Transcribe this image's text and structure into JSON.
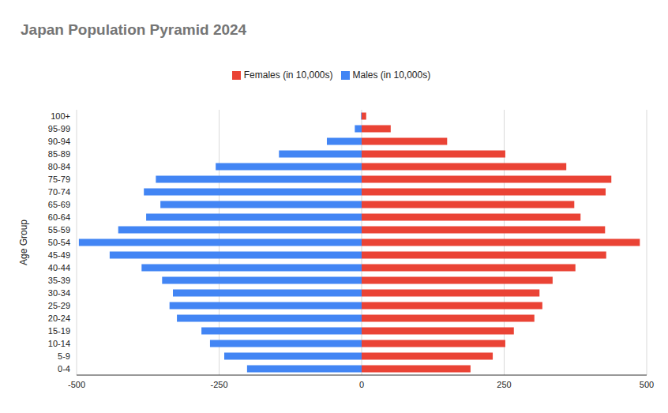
{
  "chart_data": {
    "type": "bar",
    "title": "Japan Population Pyramid 2024",
    "y_label": "Age Group",
    "orientation": "horizontal",
    "stacked": true,
    "grid": true,
    "legend": "top",
    "categories": [
      "100+",
      "95-99",
      "90-94",
      "85-89",
      "80-84",
      "75-79",
      "70-74",
      "65-69",
      "60-64",
      "55-59",
      "50-54",
      "45-49",
      "40-44",
      "35-39",
      "30-34",
      "25-29",
      "20-24",
      "15-19",
      "10-14",
      "5-9",
      "0-4"
    ],
    "series": [
      {
        "name": "Males (in 10,000s)",
        "color": "#4285f4",
        "values": [
          -1,
          -12,
          -61,
          -145,
          -256,
          -361,
          -382,
          -353,
          -378,
          -427,
          -496,
          -442,
          -386,
          -350,
          -331,
          -337,
          -324,
          -281,
          -266,
          -241,
          -201
        ]
      },
      {
        "name": "Females (in 10,000s)",
        "color": "#ea4335",
        "values": [
          8,
          51,
          150,
          252,
          359,
          438,
          428,
          373,
          384,
          427,
          488,
          429,
          375,
          335,
          312,
          317,
          303,
          267,
          252,
          230,
          191
        ]
      }
    ],
    "xlim": [
      -500,
      500
    ],
    "xticks": [
      -500,
      -250,
      0,
      250,
      500
    ]
  }
}
